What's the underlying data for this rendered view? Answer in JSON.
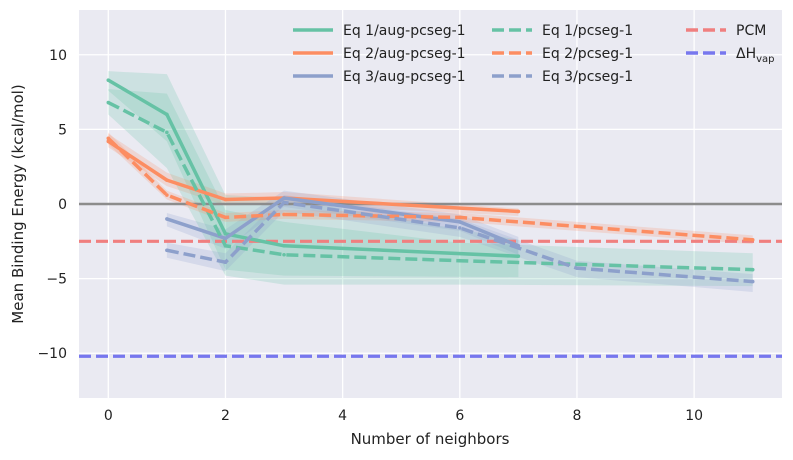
{
  "chart_data": {
    "type": "line",
    "title": "",
    "xlabel": "Number of neighbors",
    "ylabel": "Mean Binding Energy (kcal/mol)",
    "xlim": [
      -0.5,
      11.5
    ],
    "ylim": [
      -13,
      13
    ],
    "xticks": [
      0,
      2,
      4,
      6,
      8,
      10
    ],
    "yticks": [
      -10,
      -5,
      0,
      5,
      10
    ],
    "xtick_labels": [
      "0",
      "2",
      "4",
      "6",
      "8",
      "10"
    ],
    "ytick_labels": [
      "−10",
      "−5",
      "0",
      "5",
      "10"
    ],
    "grid": true,
    "legend_position": "top-right",
    "reference_lines": [
      {
        "name": "zero",
        "y": 0,
        "color": "#8c8c8c",
        "style": "solid",
        "in_legend": false
      },
      {
        "name": "PCM",
        "label": "PCM",
        "y": -2.5,
        "color": "#f07f7f",
        "style": "dashed",
        "in_legend": true
      },
      {
        "name": "dHvap",
        "label_main": "ΔH",
        "label_sub": "vap",
        "y": -10.2,
        "color": "#7777ee",
        "style": "dashed",
        "in_legend": true
      }
    ],
    "series": [
      {
        "name": "Eq 1/aug-pcseg-1",
        "color": "#66c2a5",
        "style": "solid",
        "x": [
          0,
          1,
          2,
          3,
          7
        ],
        "y": [
          8.3,
          6.0,
          -2.0,
          -2.8,
          -3.5
        ],
        "band_upper": [
          8.9,
          8.7,
          0.6,
          0.4,
          -2.4
        ],
        "band_lower": [
          7.6,
          4.2,
          -4.4,
          -4.8,
          -4.9
        ]
      },
      {
        "name": "Eq 2/aug-pcseg-1",
        "color": "#fc8d62",
        "style": "solid",
        "x": [
          0,
          1,
          2,
          3,
          7
        ],
        "y": [
          4.2,
          1.6,
          0.3,
          0.4,
          -0.5
        ],
        "band_upper": [
          4.7,
          2.1,
          0.7,
          0.8,
          -0.3
        ],
        "band_lower": [
          3.8,
          1.2,
          -0.1,
          0.0,
          -0.8
        ]
      },
      {
        "name": "Eq 3/aug-pcseg-1",
        "color": "#8da0cb",
        "style": "solid",
        "x": [
          1,
          2,
          3,
          6,
          7
        ],
        "y": [
          -1.0,
          -2.3,
          0.4,
          -1.2,
          -2.8
        ],
        "band_upper": [
          -0.6,
          -1.7,
          0.9,
          -0.7,
          -2.2
        ],
        "band_lower": [
          -1.5,
          -3.0,
          -0.2,
          -1.8,
          -3.4
        ]
      },
      {
        "name": "Eq 1/pcseg-1",
        "color": "#66c2a5",
        "style": "dashed",
        "x": [
          0,
          1,
          2,
          3,
          6,
          11
        ],
        "y": [
          6.8,
          4.8,
          -2.8,
          -3.4,
          -3.8,
          -4.4
        ],
        "band_upper": [
          7.7,
          7.4,
          -0.4,
          -1.2,
          -2.6,
          -3.3
        ],
        "band_lower": [
          6.0,
          2.4,
          -4.8,
          -5.4,
          -5.4,
          -5.5
        ]
      },
      {
        "name": "Eq 2/pcseg-1",
        "color": "#fc8d62",
        "style": "dashed",
        "x": [
          0,
          1,
          2,
          3,
          6,
          11
        ],
        "y": [
          4.4,
          0.6,
          -0.9,
          -0.7,
          -0.9,
          -2.4
        ],
        "band_upper": [
          4.8,
          0.9,
          -0.6,
          -0.4,
          -0.6,
          -2.1
        ],
        "band_lower": [
          4.0,
          0.3,
          -1.2,
          -1.0,
          -1.2,
          -2.7
        ]
      },
      {
        "name": "Eq 3/pcseg-1",
        "color": "#8da0cb",
        "style": "dashed",
        "x": [
          1,
          2,
          3,
          6,
          8,
          11
        ],
        "y": [
          -3.1,
          -3.9,
          0.1,
          -1.6,
          -4.3,
          -5.2
        ],
        "band_upper": [
          -2.6,
          -3.3,
          0.6,
          -1.0,
          -3.8,
          -4.7
        ],
        "band_lower": [
          -3.6,
          -4.5,
          -0.5,
          -2.2,
          -4.9,
          -5.9
        ]
      }
    ]
  }
}
